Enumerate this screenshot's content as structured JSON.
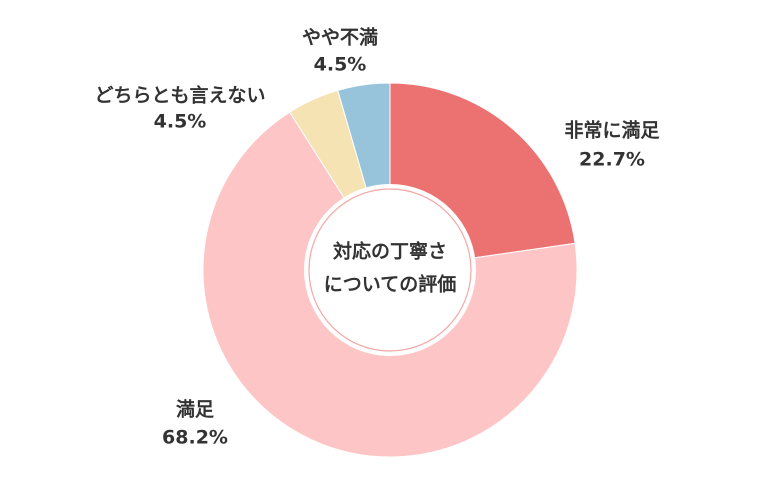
{
  "chart_data": {
    "type": "donut",
    "center_label": [
      "対応の丁寧さ",
      "についての評価"
    ],
    "categories": [
      "非常に満足",
      "満足",
      "どちらとも言えない",
      "やや不満"
    ],
    "values": [
      22.7,
      68.2,
      4.5,
      4.5
    ],
    "value_labels": [
      "22.7%",
      "68.2%",
      "4.5%",
      "4.5%"
    ],
    "colors": [
      "#ec7272",
      "#fdc5c6",
      "#f5e3b3",
      "#97c4db"
    ]
  }
}
